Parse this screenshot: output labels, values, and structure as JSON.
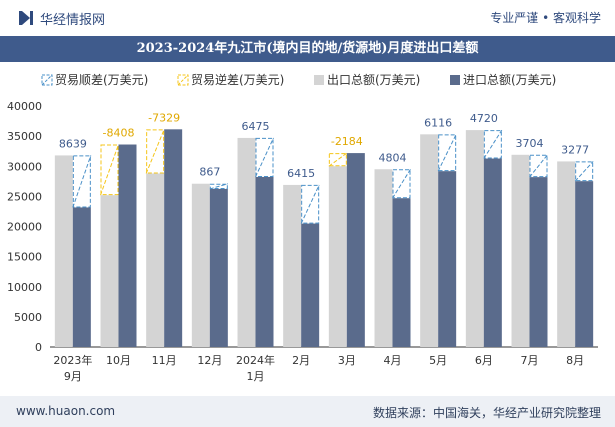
{
  "header": {
    "brand": "华经情报网",
    "tagline": "专业严谨 • 客观科学"
  },
  "footer": {
    "left": "www.huaon.com",
    "right": "数据来源：中国海关，华经产业研究院整理"
  },
  "colors": {
    "surplus": "#4a90c8",
    "deficit": "#f5c518",
    "export": "#d4d4d4",
    "import": "#5a6b8c",
    "title_bg": "#3f5b8c"
  },
  "chart_data": {
    "type": "bar",
    "title": "2023-2024年九江市(境内目的地/货源地)月度进出口差额",
    "categories": [
      "2023年9月",
      "10月",
      "11月",
      "12月",
      "2024年1月",
      "2月",
      "3月",
      "4月",
      "5月",
      "6月",
      "7月",
      "8月"
    ],
    "category_lines": [
      [
        "2023年",
        "9月"
      ],
      [
        "10月"
      ],
      [
        "11月"
      ],
      [
        "12月"
      ],
      [
        "2024年",
        "1月"
      ],
      [
        "2月"
      ],
      [
        "3月"
      ],
      [
        "4月"
      ],
      [
        "5月"
      ],
      [
        "6月"
      ],
      [
        "7月"
      ],
      [
        "8月"
      ]
    ],
    "series": [
      {
        "name": "出口总额(万美元)",
        "values": [
          31800,
          25200,
          28800,
          27100,
          34700,
          26900,
          30000,
          29500,
          35300,
          36000,
          31900,
          30800
        ]
      },
      {
        "name": "进口总额(万美元)",
        "values": [
          23161,
          33608,
          36129,
          26233,
          28225,
          20485,
          32184,
          24696,
          29184,
          31280,
          28196,
          27523
        ]
      }
    ],
    "balance": {
      "surplus_name": "贸易顺差(万美元)",
      "deficit_name": "贸易逆差(万美元)",
      "values": [
        8639,
        -8408,
        -7329,
        867,
        6475,
        6415,
        -2184,
        4804,
        6116,
        4720,
        3704,
        3277
      ]
    },
    "legend": [
      "贸易顺差(万美元)",
      "贸易逆差(万美元)",
      "出口总额(万美元)",
      "进口总额(万美元)"
    ],
    "legend_position": "top",
    "ylim": [
      0,
      40000
    ],
    "yticks": [
      0,
      5000,
      10000,
      15000,
      20000,
      25000,
      30000,
      35000,
      40000
    ],
    "grid": false
  }
}
